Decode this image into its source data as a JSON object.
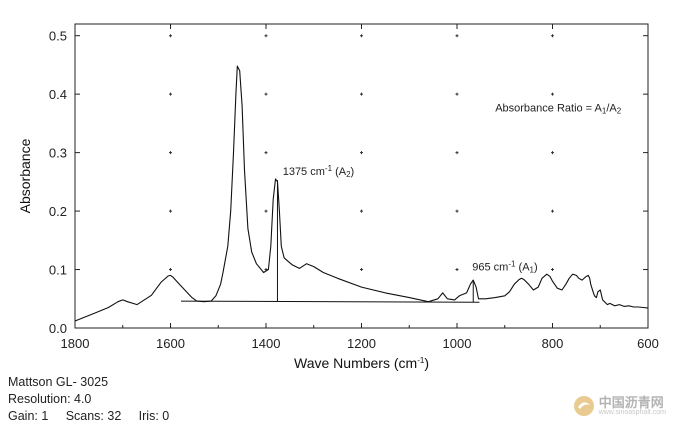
{
  "chart_data": {
    "type": "line",
    "xlabel": "Wave Numbers (cm",
    "xlabel_sup": "-1",
    "xlabel_end": ")",
    "ylabel": "Absorbance",
    "xlim": [
      1800,
      600
    ],
    "ylim": [
      0.0,
      0.52
    ],
    "x_ticks": [
      1800,
      1600,
      1400,
      1200,
      1000,
      800,
      600
    ],
    "y_ticks": [
      0.0,
      0.1,
      0.2,
      0.3,
      0.4,
      0.5
    ],
    "x_tick_labels": [
      "1800",
      "1600",
      "1400",
      "1200",
      "1000",
      "800",
      "600"
    ],
    "y_tick_labels": [
      "0.0",
      "0.1",
      "0.2",
      "0.3",
      "0.4",
      "0.5"
    ],
    "grid_marks": true,
    "series": [
      {
        "name": "spectrum",
        "x": [
          1800,
          1760,
          1730,
          1710,
          1700,
          1690,
          1670,
          1640,
          1620,
          1605,
          1600,
          1595,
          1585,
          1570,
          1555,
          1545,
          1530,
          1515,
          1505,
          1495,
          1490,
          1480,
          1474,
          1468,
          1463,
          1460,
          1455,
          1450,
          1445,
          1438,
          1430,
          1420,
          1405,
          1395,
          1390,
          1385,
          1380,
          1376,
          1372,
          1368,
          1362,
          1355,
          1345,
          1330,
          1315,
          1300,
          1280,
          1250,
          1200,
          1150,
          1100,
          1060,
          1040,
          1030,
          1020,
          1005,
          995,
          980,
          972,
          966,
          960,
          955,
          940,
          920,
          900,
          890,
          880,
          870,
          865,
          860,
          850,
          840,
          830,
          822,
          812,
          805,
          800,
          790,
          780,
          772,
          765,
          758,
          750,
          745,
          738,
          730,
          725,
          722,
          720,
          715,
          712,
          708,
          705,
          700,
          695,
          685,
          680,
          670,
          660,
          650,
          640,
          630,
          620,
          610,
          600
        ],
        "y": [
          0.012,
          0.025,
          0.035,
          0.045,
          0.048,
          0.045,
          0.04,
          0.056,
          0.078,
          0.089,
          0.09,
          0.087,
          0.078,
          0.065,
          0.052,
          0.046,
          0.045,
          0.046,
          0.055,
          0.075,
          0.095,
          0.14,
          0.2,
          0.3,
          0.4,
          0.448,
          0.44,
          0.38,
          0.27,
          0.17,
          0.13,
          0.11,
          0.095,
          0.1,
          0.14,
          0.22,
          0.255,
          0.25,
          0.2,
          0.14,
          0.12,
          0.115,
          0.108,
          0.102,
          0.11,
          0.105,
          0.095,
          0.085,
          0.07,
          0.06,
          0.052,
          0.045,
          0.05,
          0.06,
          0.05,
          0.048,
          0.055,
          0.06,
          0.075,
          0.082,
          0.07,
          0.05,
          0.05,
          0.052,
          0.055,
          0.062,
          0.075,
          0.083,
          0.085,
          0.083,
          0.075,
          0.065,
          0.07,
          0.085,
          0.092,
          0.088,
          0.08,
          0.068,
          0.065,
          0.075,
          0.085,
          0.092,
          0.09,
          0.085,
          0.082,
          0.088,
          0.09,
          0.085,
          0.075,
          0.062,
          0.055,
          0.052,
          0.062,
          0.065,
          0.048,
          0.04,
          0.042,
          0.038,
          0.04,
          0.037,
          0.038,
          0.036,
          0.036,
          0.035,
          0.034
        ]
      }
    ],
    "baseline": {
      "x1": 1578,
      "y1": 0.046,
      "x2": 953,
      "y2": 0.044
    },
    "vertical_lines": [
      {
        "x": 1376,
        "y_top": 0.253,
        "y_bottom": 0.0455
      },
      {
        "x": 966,
        "y_top": 0.082,
        "y_bottom": 0.0442
      }
    ],
    "annotations": [
      {
        "name": "a2-annotation",
        "text": "1375 cm",
        "sup": "-1",
        "var": "(A",
        "sub": "2",
        "end": ")",
        "x": 1365,
        "y": 0.262
      },
      {
        "name": "a1-annotation",
        "text": "965 cm",
        "sup": "-1",
        "var": "(A",
        "sub": "1",
        "end": ")",
        "x": 968,
        "y": 0.098
      }
    ],
    "ratio_label": {
      "text": "Absorbance Ratio = A",
      "sub1": "1",
      "slash": "/A",
      "sub2": "2",
      "x": 920,
      "y": 0.37
    }
  },
  "instrument": {
    "model": "Mattson GL- 3025",
    "resolution": "Resolution: 4.0",
    "gain": "Gain: 1",
    "scans": "Scans: 32",
    "iris": "Iris: 0"
  },
  "watermark": {
    "name": "中国沥青网",
    "url": "www.sinoasphalt.com"
  }
}
